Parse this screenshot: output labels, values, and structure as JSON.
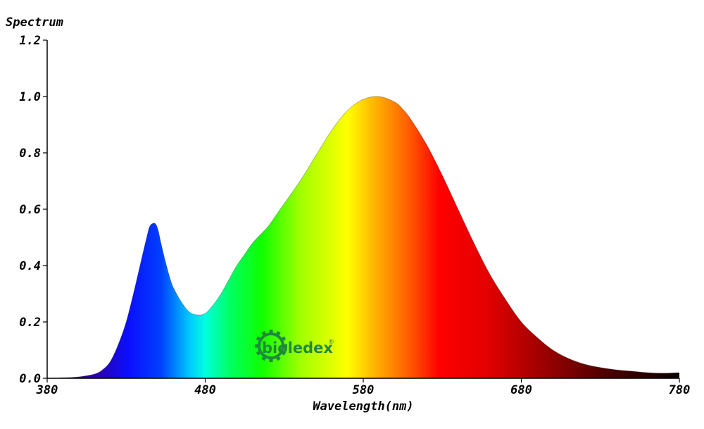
{
  "chart_data": {
    "type": "area",
    "title": "",
    "ylabel": "Spectrum",
    "xlabel": "Wavelength(nm)",
    "xlim": [
      380,
      780
    ],
    "ylim": [
      0,
      1.2
    ],
    "x_ticks": [
      "380",
      "480",
      "580",
      "680",
      "780"
    ],
    "y_ticks": [
      "0.0",
      "0.2",
      "0.4",
      "0.6",
      "0.8",
      "1.0",
      "1.2"
    ],
    "grid": false,
    "fill": "visible-spectrum-gradient",
    "series": [
      {
        "x": [
          380,
          390,
          400,
          410,
          415,
          420,
          425,
          430,
          435,
          440,
          443,
          445,
          448,
          450,
          452,
          455,
          458,
          460,
          465,
          470,
          475,
          480,
          485,
          490,
          495,
          500,
          505,
          510,
          515,
          520,
          525,
          530,
          540,
          550,
          560,
          570,
          580,
          590,
          600,
          605,
          610,
          620,
          630,
          640,
          650,
          660,
          670,
          680,
          690,
          700,
          710,
          720,
          730,
          740,
          750,
          760,
          770,
          780
        ],
        "y": [
          0.0,
          0.002,
          0.005,
          0.015,
          0.03,
          0.06,
          0.12,
          0.2,
          0.31,
          0.43,
          0.5,
          0.54,
          0.55,
          0.53,
          0.48,
          0.41,
          0.35,
          0.32,
          0.27,
          0.235,
          0.225,
          0.23,
          0.26,
          0.3,
          0.35,
          0.4,
          0.44,
          0.48,
          0.51,
          0.54,
          0.58,
          0.62,
          0.7,
          0.79,
          0.88,
          0.95,
          0.99,
          1.0,
          0.98,
          0.955,
          0.92,
          0.83,
          0.72,
          0.6,
          0.48,
          0.37,
          0.28,
          0.2,
          0.145,
          0.1,
          0.07,
          0.05,
          0.038,
          0.03,
          0.025,
          0.02,
          0.018,
          0.02
        ]
      }
    ]
  },
  "logo": {
    "text": "bioledex",
    "mark": "®",
    "color": "#1f8a3a",
    "icon": "sun-gear-icon"
  }
}
